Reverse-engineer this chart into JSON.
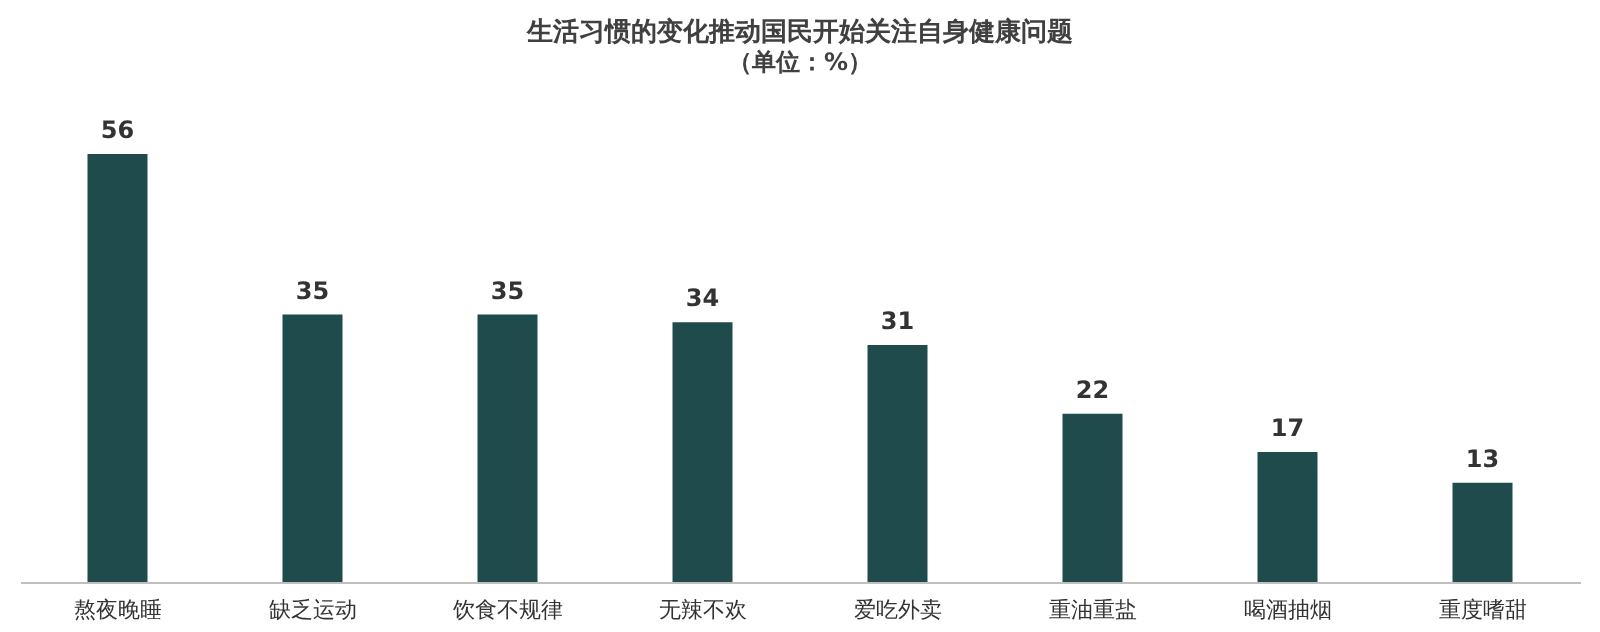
{
  "chart_data": {
    "type": "bar",
    "title": "生活习惯的变化推动国民开始关注自身健康问题",
    "subtitle": "（单位：%）",
    "categories": [
      "熬夜晚睡",
      "缺乏运动",
      "饮食不规律",
      "无辣不欢",
      "爱吃外卖",
      "重油重盐",
      "喝酒抽烟",
      "重度嗜甜"
    ],
    "values": [
      56,
      35,
      35,
      34,
      31,
      22,
      17,
      13
    ],
    "color": "#1f4b4d",
    "data_labels": true,
    "grid": false
  }
}
